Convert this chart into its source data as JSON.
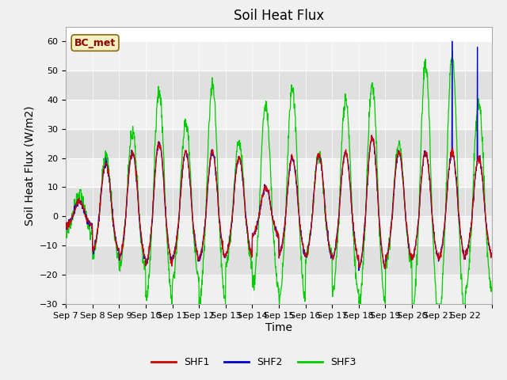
{
  "title": "Soil Heat Flux",
  "xlabel": "Time",
  "ylabel": "Soil Heat Flux (W/m2)",
  "ylim": [
    -30,
    65
  ],
  "yticks": [
    -30,
    -20,
    -10,
    0,
    10,
    20,
    30,
    40,
    50,
    60
  ],
  "num_days": 16,
  "xtick_labels": [
    "Sep 7",
    "Sep 8",
    "Sep 9",
    "Sep 10",
    "Sep 11",
    "Sep 12",
    "Sep 13",
    "Sep 14",
    "Sep 15",
    "Sep 16",
    "Sep 17",
    "Sep 18",
    "Sep 19",
    "Sep 20",
    "Sep 21",
    "Sep 22"
  ],
  "legend_label": "BC_met",
  "legend_entries": [
    "SHF1",
    "SHF2",
    "SHF3"
  ],
  "line_colors": [
    "#cc0000",
    "#0000cc",
    "#00cc00"
  ],
  "background_color": "#f0f0f0",
  "plot_bg_color": "#ffffff",
  "stripe_color_light": "#f0f0f0",
  "stripe_color_dark": "#e0e0e0",
  "title_fontsize": 12,
  "axis_label_fontsize": 10,
  "tick_fontsize": 8,
  "day_amps_shf12": [
    5,
    18,
    22,
    25,
    22,
    22,
    20,
    10,
    20,
    21,
    22,
    27,
    22,
    22,
    22,
    20
  ],
  "day_amps_shf3": [
    8,
    21,
    28,
    43,
    32,
    45,
    25,
    38,
    44,
    21,
    40,
    45,
    25,
    52,
    55,
    39
  ]
}
